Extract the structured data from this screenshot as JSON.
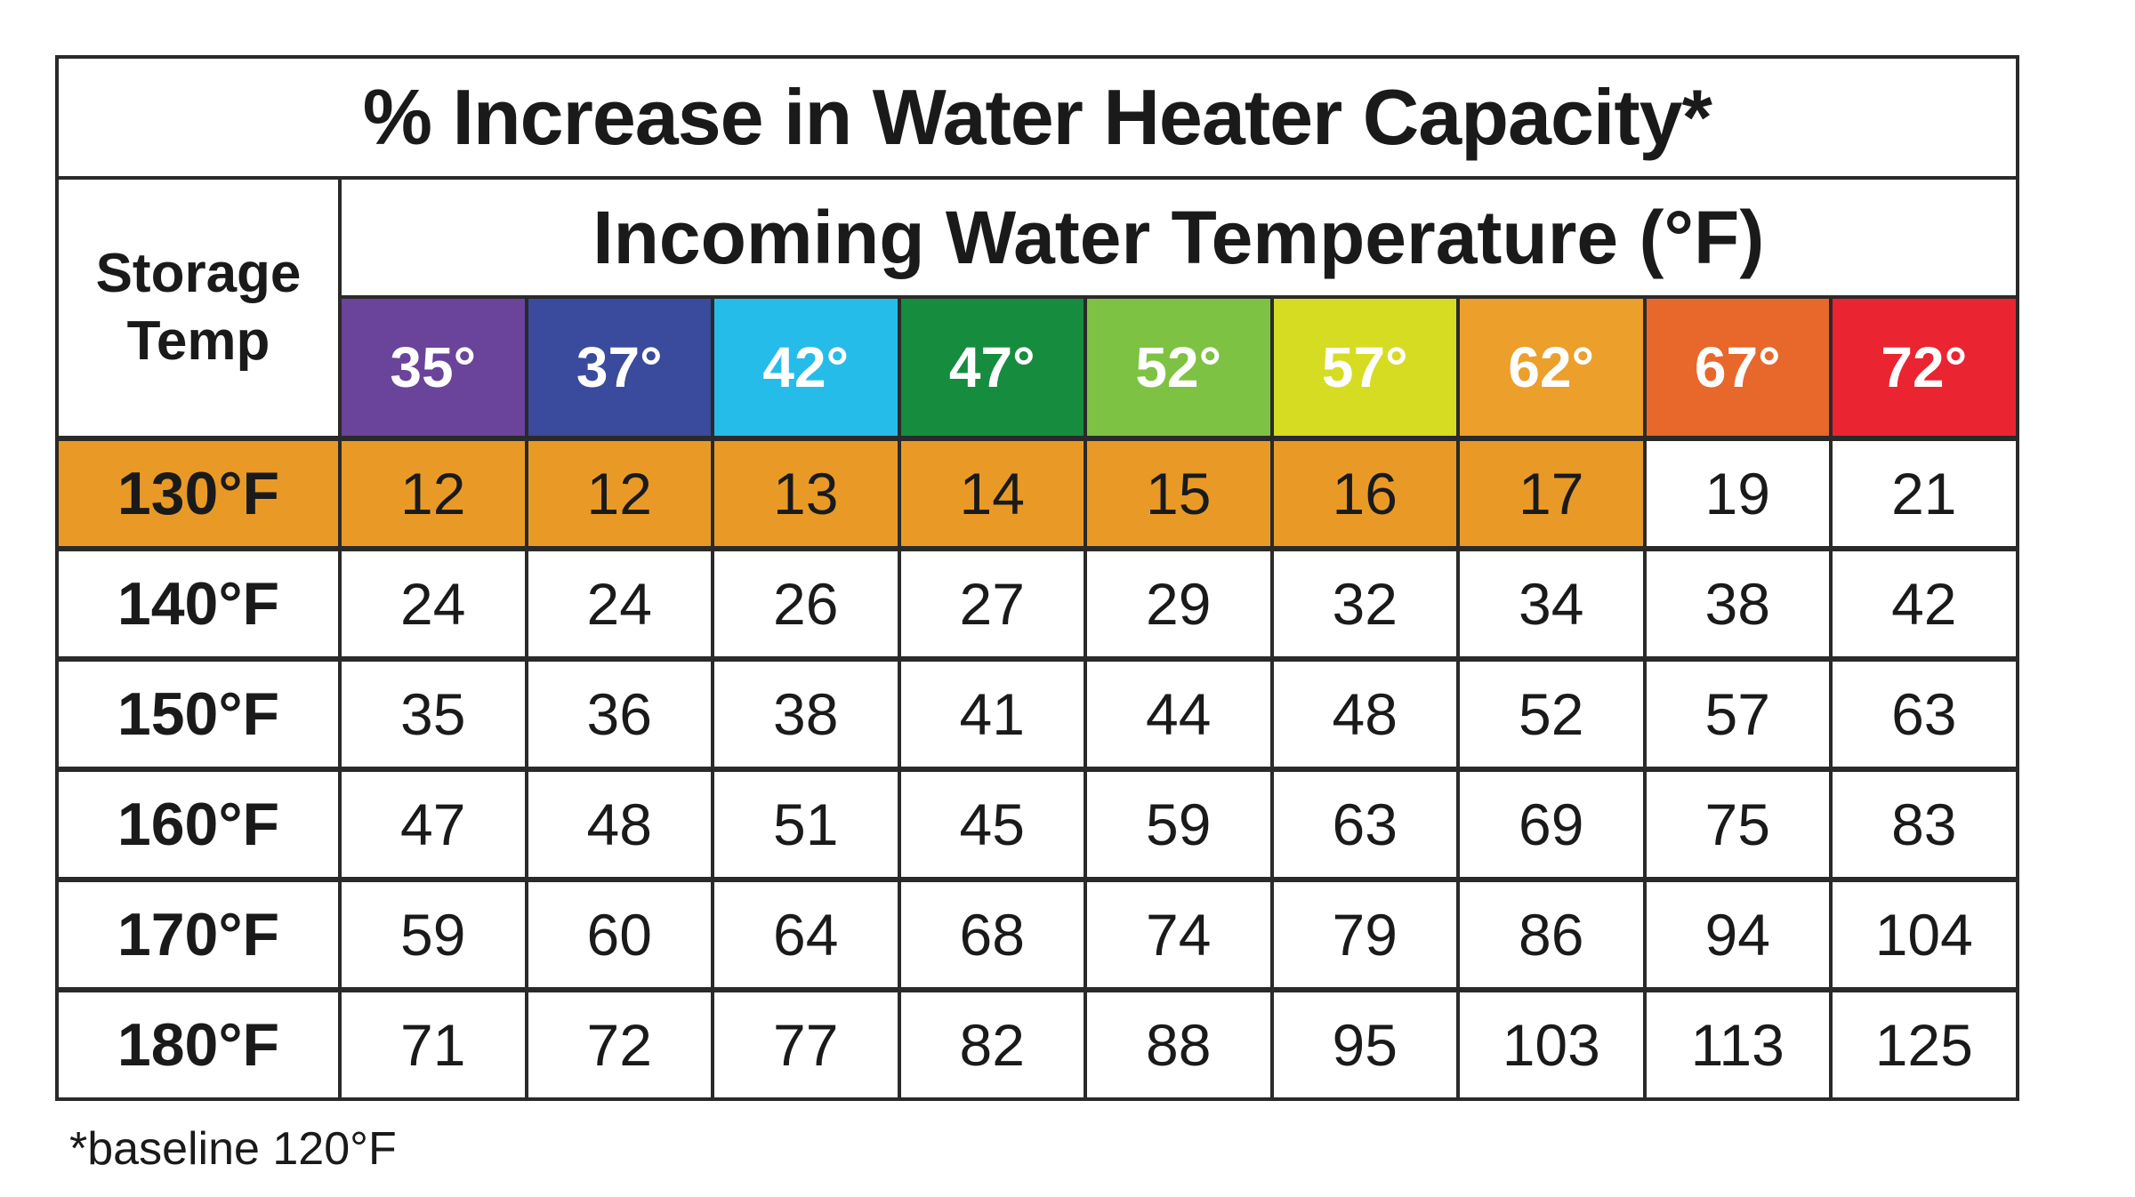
{
  "chart_data": {
    "type": "table",
    "title": "% Increase in Water Heater Capacity*",
    "row_header_label": "Storage Temp",
    "column_group_label": "Incoming Water Temperature (°F)",
    "columns": [
      "35°",
      "37°",
      "42°",
      "47°",
      "52°",
      "57°",
      "62°",
      "67°",
      "72°"
    ],
    "column_colors": [
      "#6a439a",
      "#3a4a9c",
      "#26bce9",
      "#168c3e",
      "#7dc242",
      "#d6dc22",
      "#ec9f2a",
      "#e8672a",
      "#ea2430"
    ],
    "rows": [
      {
        "label": "130°F",
        "values": [
          "12",
          "12",
          "13",
          "14",
          "15",
          "16",
          "17",
          "19",
          "21"
        ],
        "highlight_count": 7
      },
      {
        "label": "140°F",
        "values": [
          "24",
          "24",
          "26",
          "27",
          "29",
          "32",
          "34",
          "38",
          "42"
        ],
        "highlight_count": 0
      },
      {
        "label": "150°F",
        "values": [
          "35",
          "36",
          "38",
          "41",
          "44",
          "48",
          "52",
          "57",
          "63"
        ],
        "highlight_count": 0
      },
      {
        "label": "160°F",
        "values": [
          "47",
          "48",
          "51",
          "45",
          "59",
          "63",
          "69",
          "75",
          "83"
        ],
        "highlight_count": 0
      },
      {
        "label": "170°F",
        "values": [
          "59",
          "60",
          "64",
          "68",
          "74",
          "79",
          "86",
          "94",
          "104"
        ],
        "highlight_count": 0
      },
      {
        "label": "180°F",
        "values": [
          "71",
          "72",
          "77",
          "82",
          "88",
          "95",
          "103",
          "113",
          "125"
        ],
        "highlight_count": 0
      }
    ],
    "highlight_color": "#e99a26",
    "footnote": "*baseline 120°F"
  }
}
